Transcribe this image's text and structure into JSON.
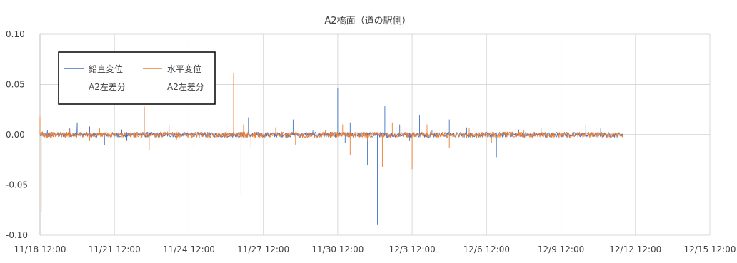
{
  "chart_data": {
    "type": "line",
    "title": "A2橋面（道の駅側）",
    "ylim": [
      -0.1,
      0.1
    ],
    "y_ticks": [
      "0.10",
      "0.05",
      "0.00",
      "-0.05",
      "-0.10"
    ],
    "y_tick_values": [
      0.1,
      0.05,
      0.0,
      -0.05,
      -0.1
    ],
    "x_ticks": [
      "11/18 12:00",
      "11/21 12:00",
      "11/24 12:00",
      "11/27 12:00",
      "11/30 12:00",
      "12/3 12:00",
      "12/6 12:00",
      "12/9 12:00",
      "12/12 12:00",
      "12/15 12:00"
    ],
    "x_tick_days": [
      0,
      3,
      6,
      9,
      12,
      15,
      18,
      21,
      24,
      27
    ],
    "grid": true,
    "legend_placement": "top-left",
    "series": [
      {
        "name": "鉛直変位\nA2左差分",
        "color": "#4472c4",
        "x_days": [
          0.0,
          0.1,
          0.3,
          1.2,
          1.5,
          2.0,
          2.6,
          3.3,
          3.5,
          4.2,
          5.0,
          5.2,
          6.0,
          7.5,
          8.4,
          8.8,
          9.5,
          10.2,
          11.0,
          12.0,
          12.3,
          12.5,
          13.2,
          13.6,
          13.9,
          14.1,
          14.5,
          14.9,
          15.3,
          15.8,
          16.5,
          17.2,
          17.7,
          18.4,
          19.3,
          20.2,
          21.2,
          22.0,
          22.6,
          23.2,
          23.5
        ],
        "values": [
          0.005,
          0.002,
          0.004,
          0.006,
          0.012,
          0.008,
          -0.01,
          0.005,
          -0.006,
          0.027,
          0.003,
          0.01,
          -0.003,
          0.01,
          0.017,
          -0.002,
          0.007,
          0.015,
          0.004,
          0.046,
          -0.008,
          0.012,
          -0.03,
          -0.089,
          0.028,
          -0.002,
          0.01,
          -0.006,
          0.019,
          0.004,
          0.015,
          0.007,
          0.002,
          -0.022,
          0.005,
          0.006,
          0.031,
          0.01,
          0.006,
          0.001,
          0.001
        ]
      },
      {
        "name": "水平変位\nA2左差分",
        "color": "#ed7d31",
        "x_days": [
          0.0,
          0.05,
          0.1,
          0.3,
          1.2,
          2.0,
          2.4,
          3.0,
          4.2,
          4.4,
          5.5,
          6.2,
          7.8,
          8.1,
          8.2,
          8.5,
          9.5,
          10.3,
          11.5,
          12.2,
          12.5,
          13.2,
          13.8,
          14.2,
          15.0,
          15.6,
          16.5,
          17.3,
          18.2,
          19.5,
          20.3,
          21.0,
          22.4,
          23.0,
          23.5
        ],
        "values": [
          0.018,
          -0.077,
          0.003,
          -0.003,
          0.004,
          -0.006,
          0.006,
          -0.002,
          0.028,
          -0.015,
          -0.005,
          -0.012,
          0.061,
          -0.06,
          0.01,
          -0.012,
          0.006,
          -0.01,
          0.004,
          0.01,
          -0.02,
          -0.006,
          -0.032,
          0.012,
          -0.034,
          0.01,
          -0.013,
          0.006,
          -0.008,
          0.004,
          -0.002,
          0.003,
          0.002,
          0.001,
          0.001
        ]
      }
    ]
  }
}
